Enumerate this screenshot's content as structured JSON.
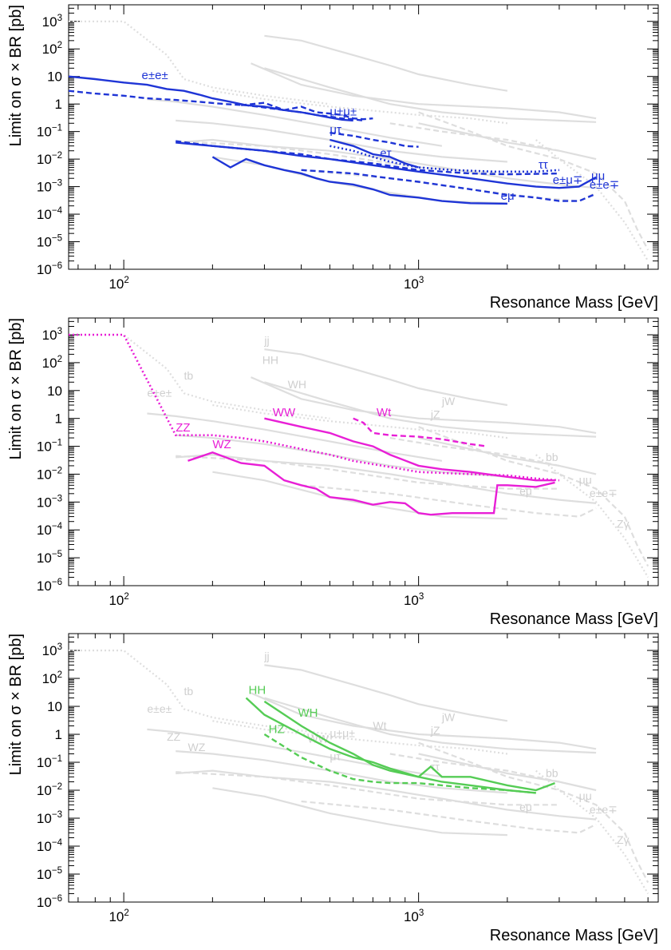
{
  "chart_data": [
    {
      "type": "line",
      "xscale": "log",
      "yscale": "log",
      "xlim": [
        65,
        6500
      ],
      "ylim": [
        1e-06,
        4000
      ],
      "xlabel": "Resonance Mass [GeV]",
      "ylabel": "Limit on σ × BR [pb]",
      "x_tick_labels": [
        "10^2",
        "10^3"
      ],
      "y_tick_labels": [
        "10^-6",
        "10^-5",
        "10^-4",
        "10^-3",
        "10^-2",
        "10^-1",
        "1",
        "10",
        "10^2",
        "10^3"
      ],
      "highlight_color": "#1f35d6",
      "background_color": "#dedede",
      "series": [
        {
          "name": "e±e±",
          "style": "solid",
          "x": [
            65,
            80,
            100,
            120,
            140,
            160,
            180,
            200,
            230,
            260,
            300,
            350,
            400,
            450,
            500,
            550,
            600
          ],
          "y": [
            10,
            8,
            6,
            5,
            3.5,
            3,
            2.2,
            1.6,
            1.2,
            0.9,
            0.8,
            0.6,
            0.5,
            0.4,
            0.32,
            0.27,
            0.25
          ]
        },
        {
          "name": "",
          "style": "dashed",
          "x": [
            65,
            80,
            100,
            120,
            150,
            180,
            220,
            260,
            300,
            350,
            400,
            450,
            500,
            550,
            600,
            650
          ],
          "y": [
            3,
            2.4,
            2,
            1.6,
            1.4,
            1.2,
            1,
            0.9,
            0.75,
            0.6,
            0.5,
            0.4,
            0.35,
            0.3,
            0.28,
            0.25
          ]
        },
        {
          "name": "μ±μ±",
          "style": "dashed",
          "x": [
            250,
            300,
            350,
            400,
            450,
            500,
            550,
            600,
            650,
            700
          ],
          "y": [
            0.9,
            1.1,
            0.6,
            0.8,
            0.5,
            0.45,
            0.4,
            0.3,
            0.28,
            0.3
          ]
        },
        {
          "name": "μτ",
          "style": "solid",
          "x": [
            500,
            600,
            700,
            800,
            900,
            1000
          ],
          "y": [
            0.05,
            0.03,
            0.015,
            0.012,
            0.007,
            0.005
          ]
        },
        {
          "name": "eτ",
          "style": "dashed",
          "x": [
            500,
            600,
            700,
            800,
            900,
            1000
          ],
          "y": [
            0.09,
            0.07,
            0.05,
            0.04,
            0.03,
            0.028
          ]
        },
        {
          "name": "ττ",
          "style": "dotted",
          "x": [
            500,
            600,
            700,
            800,
            1000,
            1300,
            1800,
            2500,
            3000
          ],
          "y": [
            0.03,
            0.02,
            0.012,
            0.008,
            0.005,
            0.004,
            0.0035,
            0.0035,
            0.004
          ]
        },
        {
          "name": "μμ",
          "style": "solid",
          "x": [
            150,
            200,
            300,
            400,
            500,
            700,
            1000,
            1500,
            2000,
            2500,
            3000,
            3500,
            4000
          ],
          "y": [
            0.04,
            0.03,
            0.02,
            0.013,
            0.01,
            0.006,
            0.0035,
            0.002,
            0.0013,
            0.001,
            0.0009,
            0.001,
            0.0022
          ]
        },
        {
          "name": "e±μ∓",
          "style": "dashed",
          "x": [
            150,
            200,
            300,
            400,
            500,
            700,
            1000,
            1500,
            2000,
            3000
          ],
          "y": [
            0.045,
            0.03,
            0.02,
            0.015,
            0.01,
            0.007,
            0.004,
            0.003,
            0.0028,
            0.003
          ]
        },
        {
          "name": "e±e∓",
          "style": "dashed",
          "x": [
            400,
            600,
            800,
            1000,
            1500,
            2000,
            2500,
            3000,
            3500,
            4000
          ],
          "y": [
            0.004,
            0.003,
            0.002,
            0.0015,
            0.0008,
            0.0005,
            0.0004,
            0.0003,
            0.0003,
            0.00055
          ]
        },
        {
          "name": "eμ",
          "style": "solid",
          "x": [
            200,
            230,
            260,
            300,
            350,
            400,
            450,
            500,
            600,
            700,
            800,
            1000,
            1200,
            1500,
            2000
          ],
          "y": [
            0.012,
            0.005,
            0.01,
            0.006,
            0.004,
            0.003,
            0.002,
            0.0015,
            0.0012,
            0.0008,
            0.0005,
            0.0004,
            0.0003,
            0.00025,
            0.00024
          ]
        }
      ],
      "background_labels": []
    },
    {
      "type": "line",
      "xscale": "log",
      "yscale": "log",
      "xlim": [
        65,
        6500
      ],
      "ylim": [
        1e-06,
        4000
      ],
      "xlabel": "Resonance Mass [GeV]",
      "ylabel": "Limit on σ × BR [pb]",
      "x_tick_labels": [
        "10^2",
        "10^3"
      ],
      "y_tick_labels": [
        "10^-6",
        "10^-5",
        "10^-4",
        "10^-3",
        "10^-2",
        "10^-1",
        "1",
        "10",
        "10^2",
        "10^3"
      ],
      "highlight_color": "#e81fd6",
      "background_color": "#dedede",
      "series": [
        {
          "name": "ZZ",
          "style": "dotted",
          "x": [
            65,
            100,
            150,
            200,
            250,
            300,
            400,
            500,
            600,
            800,
            1000,
            1500,
            2000,
            2500,
            3000
          ],
          "y": [
            1000,
            1000,
            0.25,
            0.25,
            0.2,
            0.15,
            0.08,
            0.05,
            0.03,
            0.018,
            0.012,
            0.01,
            0.009,
            0.007,
            0.006
          ]
        },
        {
          "name": "WZ",
          "style": "solid",
          "x": [
            165,
            200,
            250,
            300,
            350,
            400,
            450,
            500,
            600,
            700,
            800,
            900,
            1000,
            1100,
            1300,
            1500,
            1800,
            1850,
            2000,
            2500,
            2900
          ],
          "y": [
            0.03,
            0.06,
            0.025,
            0.02,
            0.006,
            0.004,
            0.003,
            0.0015,
            0.0012,
            0.0008,
            0.001,
            0.0009,
            0.0004,
            0.00035,
            0.0004,
            0.0004,
            0.0004,
            0.004,
            0.004,
            0.0035,
            0.005
          ]
        },
        {
          "name": "WW",
          "style": "solid",
          "x": [
            300,
            400,
            500,
            600,
            700,
            800,
            1000,
            1200,
            1500,
            2000,
            2500,
            2900
          ],
          "y": [
            1,
            0.5,
            0.3,
            0.15,
            0.1,
            0.05,
            0.02,
            0.015,
            0.012,
            0.008,
            0.006,
            0.006
          ]
        },
        {
          "name": "Wt",
          "style": "dashed",
          "x": [
            600,
            650,
            700,
            800,
            1000,
            1200,
            1500,
            1700
          ],
          "y": [
            1,
            0.7,
            0.3,
            0.25,
            0.22,
            0.18,
            0.12,
            0.1
          ]
        }
      ],
      "background_labels": [
        "jj",
        "HH",
        "WH",
        "tb",
        "bb",
        "jW",
        "jZ",
        "Zγ",
        "e±e±",
        "e±e∓",
        "eμ",
        "μμ"
      ]
    },
    {
      "type": "line",
      "xscale": "log",
      "yscale": "log",
      "xlim": [
        65,
        6500
      ],
      "ylim": [
        1e-06,
        4000
      ],
      "xlabel": "Resonance Mass [GeV]",
      "ylabel": "Limit on σ × BR [pb]",
      "x_tick_labels": [
        "10^2",
        "10^3"
      ],
      "y_tick_labels": [
        "10^-6",
        "10^-5",
        "10^-4",
        "10^-3",
        "10^-2",
        "10^-1",
        "1",
        "10",
        "10^2",
        "10^3"
      ],
      "highlight_color": "#55cc55",
      "background_color": "#dedede",
      "series": [
        {
          "name": "HH",
          "style": "solid",
          "x": [
            260,
            300,
            400,
            500,
            600,
            700,
            800,
            1000,
            1200,
            1500,
            2000,
            2500
          ],
          "y": [
            20,
            5,
            1,
            0.3,
            0.15,
            0.1,
            0.06,
            0.03,
            0.02,
            0.015,
            0.01,
            0.008
          ]
        },
        {
          "name": "WH",
          "style": "solid",
          "x": [
            300,
            400,
            500,
            600,
            700,
            800,
            1000,
            1100,
            1200,
            1500,
            2000,
            2500,
            2900
          ],
          "y": [
            15,
            2,
            0.5,
            0.2,
            0.08,
            0.05,
            0.03,
            0.07,
            0.03,
            0.03,
            0.015,
            0.01,
            0.018
          ]
        },
        {
          "name": "HZ",
          "style": "dashed",
          "x": [
            300,
            400,
            500,
            600,
            700,
            800,
            1000,
            1500,
            2000,
            2500
          ],
          "y": [
            1,
            0.15,
            0.05,
            0.025,
            0.02,
            0.018,
            0.018,
            0.012,
            0.01,
            0.008
          ]
        }
      ],
      "background_labels": [
        "jj",
        "tb",
        "bb",
        "jW",
        "jZ",
        "Zγ",
        "e±e±",
        "e±e∓",
        "eμ",
        "μμ",
        "WZ",
        "ZZ",
        "Wt",
        "WW",
        "μ±μ±",
        "μτ",
        "ττ"
      ]
    }
  ]
}
